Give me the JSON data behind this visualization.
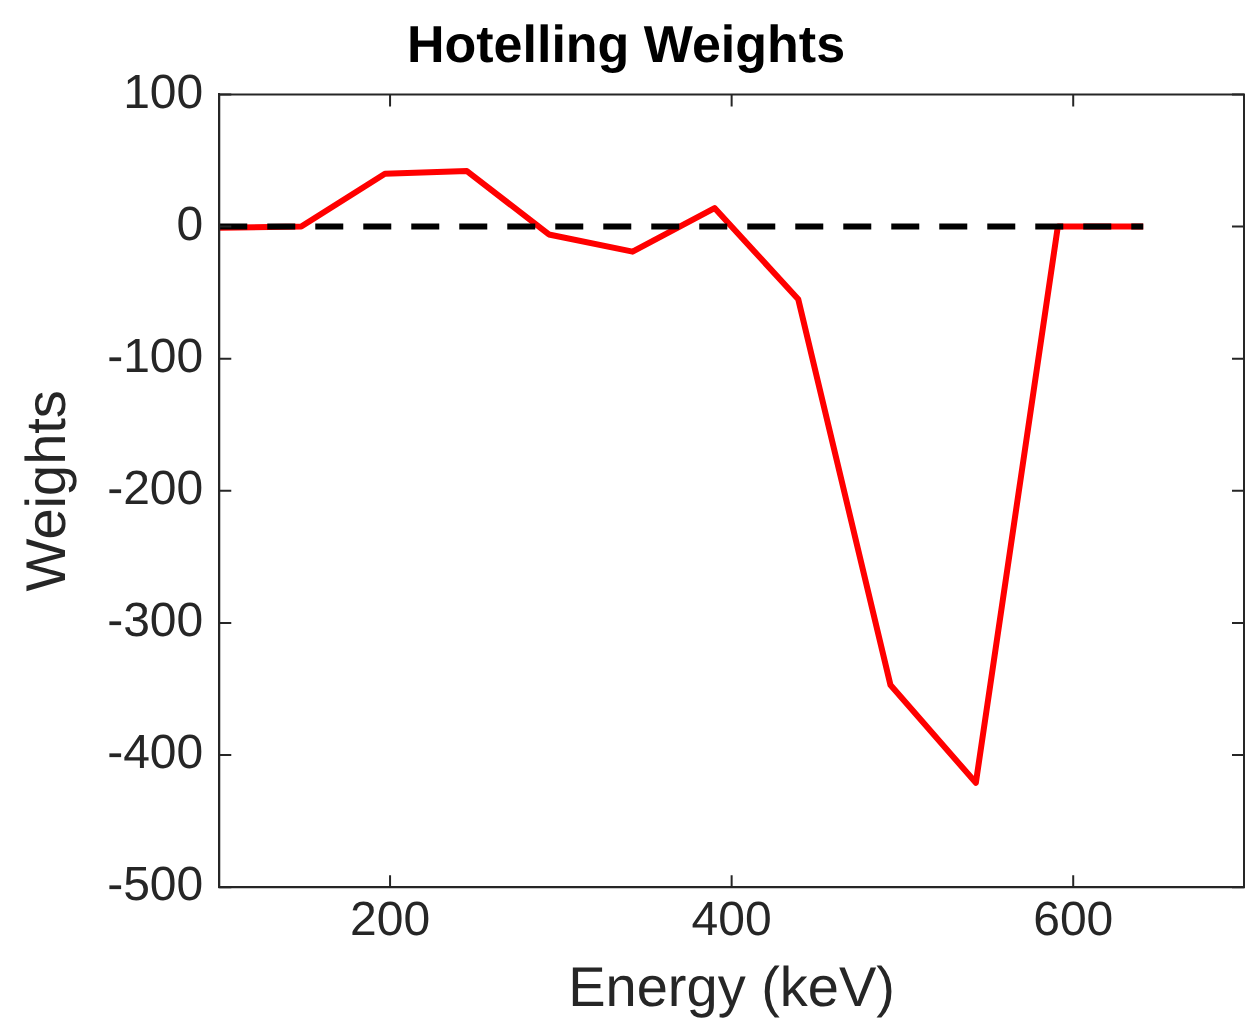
{
  "chart_data": {
    "type": "line",
    "title": "Hotelling Weights",
    "xlabel": "Energy (keV)",
    "ylabel": "Weights",
    "xlim": [
      100,
      700
    ],
    "xticks": [
      200,
      400,
      600
    ],
    "ylim": [
      -500,
      100
    ],
    "yticks": [
      -500,
      -400,
      -300,
      -200,
      -100,
      0,
      100
    ],
    "grid": false,
    "legend": false,
    "marker": "none",
    "series": [
      {
        "color": "#ff0000",
        "line_style": "solid",
        "x": [
          100,
          148,
          197,
          245,
          293,
          342,
          390,
          439,
          493,
          543,
          591,
          641
        ],
        "values": [
          -1,
          0,
          40,
          42,
          -6,
          -19,
          14,
          -55,
          -347,
          -421,
          0,
          0
        ]
      },
      {
        "color": "#000000",
        "line_style": "dashed",
        "x": [
          100,
          641
        ],
        "values": [
          0,
          0
        ]
      }
    ]
  }
}
